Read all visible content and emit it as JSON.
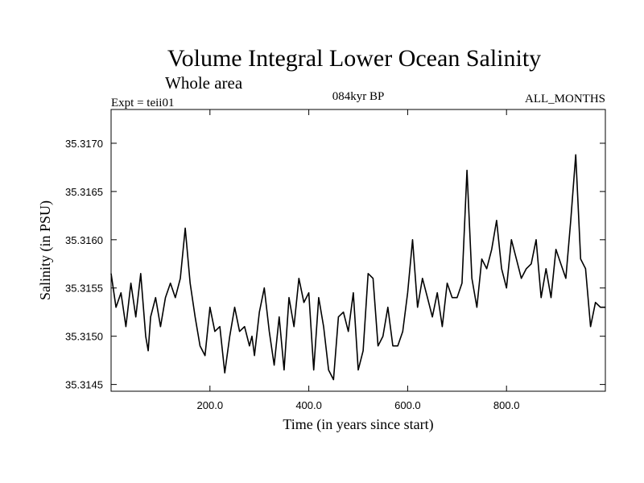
{
  "chart_data": {
    "type": "line",
    "title": "Volume Integral Lower Ocean Salinity",
    "subtitle": "Whole area",
    "experiment_label": "Expt = teii01",
    "period_label": "084kyr BP",
    "months_label": "ALL_MONTHS",
    "xlabel": "Time (in years since start)",
    "ylabel": "Salinity (in PSU)",
    "xlim": [
      0,
      1000
    ],
    "ylim": [
      35.31443,
      35.31735
    ],
    "x_ticks": [
      200,
      400,
      600,
      800
    ],
    "x_tick_labels": [
      "200.0",
      "400.0",
      "600.0",
      "800.0"
    ],
    "y_ticks": [
      35.3145,
      35.315,
      35.3155,
      35.316,
      35.3165,
      35.317
    ],
    "y_tick_labels": [
      "35.3145",
      "35.3150",
      "35.3155",
      "35.3160",
      "35.3165",
      "35.3170"
    ],
    "grid": false,
    "line_color": "#000000",
    "series": [
      {
        "x": [
          0,
          10,
          20,
          30,
          40,
          50,
          60,
          70,
          75,
          80,
          90,
          100,
          110,
          120,
          130,
          140,
          150,
          160,
          170,
          180,
          190,
          200,
          210,
          220,
          230,
          240,
          250,
          260,
          270,
          280,
          285,
          290,
          300,
          310,
          320,
          330,
          340,
          350,
          360,
          370,
          380,
          390,
          400,
          410,
          420,
          430,
          440,
          450,
          460,
          470,
          480,
          490,
          500,
          510,
          520,
          530,
          540,
          550,
          560,
          570,
          580,
          590,
          600,
          610,
          620,
          630,
          640,
          650,
          660,
          670,
          680,
          690,
          700,
          710,
          720,
          730,
          740,
          750,
          760,
          770,
          780,
          790,
          800,
          810,
          820,
          830,
          840,
          850,
          860,
          870,
          880,
          890,
          900,
          910,
          920,
          930,
          940,
          950,
          960,
          970,
          980,
          990,
          1000
        ],
        "y": [
          35.31565,
          35.3153,
          35.31545,
          35.3151,
          35.31555,
          35.3152,
          35.31565,
          35.315,
          35.31485,
          35.3152,
          35.3154,
          35.3151,
          35.3154,
          35.31555,
          35.3154,
          35.3156,
          35.31612,
          35.31555,
          35.3152,
          35.3149,
          35.3148,
          35.3153,
          35.31505,
          35.3151,
          35.31462,
          35.315,
          35.3153,
          35.31505,
          35.3151,
          35.3149,
          35.315,
          35.3148,
          35.31525,
          35.3155,
          35.31505,
          35.3147,
          35.3152,
          35.31465,
          35.3154,
          35.3151,
          35.3156,
          35.31535,
          35.31545,
          35.31465,
          35.3154,
          35.3151,
          35.31465,
          35.31455,
          35.3152,
          35.31525,
          35.31505,
          35.31545,
          35.31465,
          35.31485,
          35.31565,
          35.3156,
          35.3149,
          35.315,
          35.3153,
          35.3149,
          35.3149,
          35.31505,
          35.31545,
          35.316,
          35.3153,
          35.3156,
          35.3154,
          35.3152,
          35.31545,
          35.3151,
          35.31555,
          35.3154,
          35.3154,
          35.31555,
          35.31672,
          35.3156,
          35.3153,
          35.3158,
          35.3157,
          35.3159,
          35.3162,
          35.3157,
          35.3155,
          35.316,
          35.3158,
          35.3156,
          35.3157,
          35.31575,
          35.316,
          35.3154,
          35.3157,
          35.3154,
          35.3159,
          35.31575,
          35.3156,
          35.3162,
          35.31688,
          35.3158,
          35.3157,
          35.3151,
          35.31535,
          35.3153,
          35.3153
        ]
      }
    ]
  }
}
